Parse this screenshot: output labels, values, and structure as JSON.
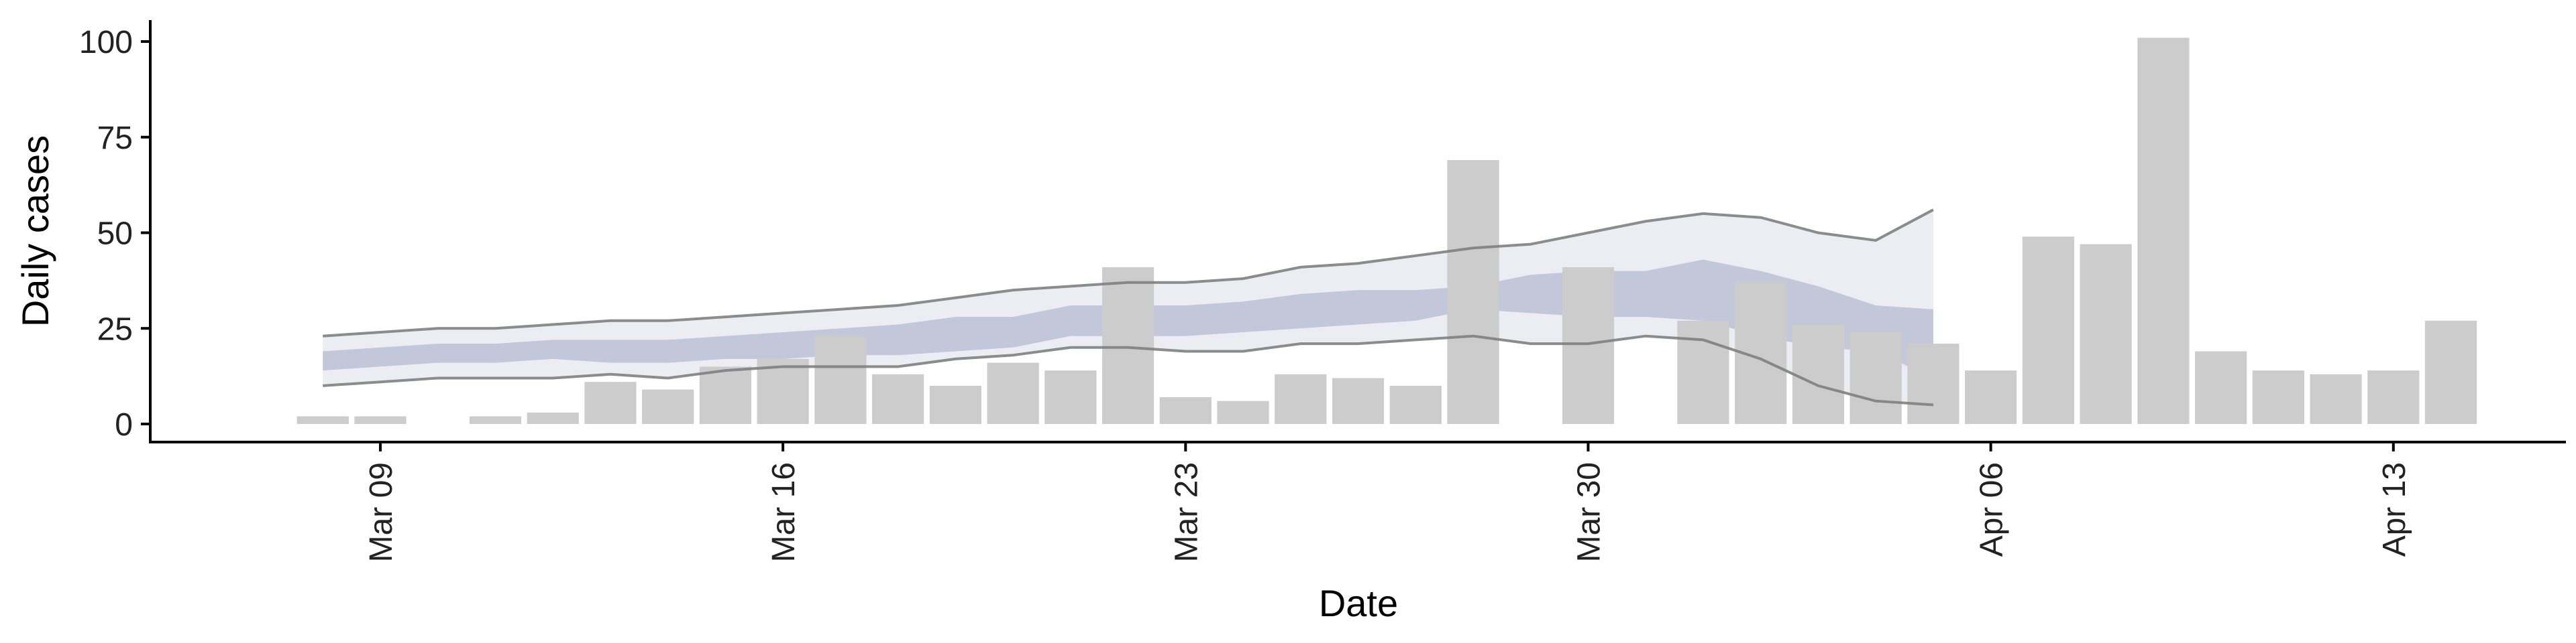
{
  "chart_data": {
    "type": "bar",
    "xlabel": "Date",
    "ylabel": "Daily cases",
    "ylim": [
      0,
      105
    ],
    "xlim": [
      "2020-03-05",
      "2020-04-16"
    ],
    "grid": false,
    "colors": {
      "bars": "#cccccc",
      "band_outer": "#dcdee9",
      "band_inner": "#a6afca",
      "bound_lines": "#808080"
    },
    "x_ticks": [
      {
        "date": "2020-03-09",
        "label": "Mar 09"
      },
      {
        "date": "2020-03-16",
        "label": "Mar 16"
      },
      {
        "date": "2020-03-23",
        "label": "Mar 23"
      },
      {
        "date": "2020-03-30",
        "label": "Mar 30"
      },
      {
        "date": "2020-04-06",
        "label": "Apr 06"
      },
      {
        "date": "2020-04-13",
        "label": "Apr 13"
      }
    ],
    "y_ticks": [
      0,
      25,
      50,
      75,
      100
    ],
    "bars": [
      {
        "date": "2020-03-08",
        "value": 2
      },
      {
        "date": "2020-03-09",
        "value": 2
      },
      {
        "date": "2020-03-10",
        "value": 0
      },
      {
        "date": "2020-03-11",
        "value": 2
      },
      {
        "date": "2020-03-12",
        "value": 3
      },
      {
        "date": "2020-03-13",
        "value": 11
      },
      {
        "date": "2020-03-14",
        "value": 9
      },
      {
        "date": "2020-03-15",
        "value": 15
      },
      {
        "date": "2020-03-16",
        "value": 17
      },
      {
        "date": "2020-03-17",
        "value": 23
      },
      {
        "date": "2020-03-18",
        "value": 13
      },
      {
        "date": "2020-03-19",
        "value": 10
      },
      {
        "date": "2020-03-20",
        "value": 16
      },
      {
        "date": "2020-03-21",
        "value": 14
      },
      {
        "date": "2020-03-22",
        "value": 41
      },
      {
        "date": "2020-03-23",
        "value": 7
      },
      {
        "date": "2020-03-24",
        "value": 6
      },
      {
        "date": "2020-03-25",
        "value": 13
      },
      {
        "date": "2020-03-26",
        "value": 12
      },
      {
        "date": "2020-03-27",
        "value": 10
      },
      {
        "date": "2020-03-28",
        "value": 69
      },
      {
        "date": "2020-03-29",
        "value": 0
      },
      {
        "date": "2020-03-30",
        "value": 41
      },
      {
        "date": "2020-03-31",
        "value": 0
      },
      {
        "date": "2020-04-01",
        "value": 27
      },
      {
        "date": "2020-04-02",
        "value": 37
      },
      {
        "date": "2020-04-03",
        "value": 26
      },
      {
        "date": "2020-04-04",
        "value": 24
      },
      {
        "date": "2020-04-05",
        "value": 21
      },
      {
        "date": "2020-04-06",
        "value": 14
      },
      {
        "date": "2020-04-07",
        "value": 49
      },
      {
        "date": "2020-04-08",
        "value": 47
      },
      {
        "date": "2020-04-09",
        "value": 101
      },
      {
        "date": "2020-04-10",
        "value": 19
      },
      {
        "date": "2020-04-11",
        "value": 14
      },
      {
        "date": "2020-04-12",
        "value": 13
      },
      {
        "date": "2020-04-13",
        "value": 14
      },
      {
        "date": "2020-04-14",
        "value": 27
      }
    ],
    "estimate": {
      "dates": [
        "2020-03-08",
        "2020-03-09",
        "2020-03-10",
        "2020-03-11",
        "2020-03-12",
        "2020-03-13",
        "2020-03-14",
        "2020-03-15",
        "2020-03-16",
        "2020-03-17",
        "2020-03-18",
        "2020-03-19",
        "2020-03-20",
        "2020-03-21",
        "2020-03-22",
        "2020-03-23",
        "2020-03-24",
        "2020-03-25",
        "2020-03-26",
        "2020-03-27",
        "2020-03-28",
        "2020-03-29",
        "2020-03-30",
        "2020-03-31",
        "2020-04-01",
        "2020-04-02",
        "2020-04-03",
        "2020-04-04",
        "2020-04-05"
      ],
      "upper_90": [
        23,
        24,
        25,
        25,
        26,
        27,
        27,
        28,
        29,
        30,
        31,
        33,
        35,
        36,
        37,
        37,
        38,
        41,
        42,
        44,
        46,
        47,
        50,
        53,
        55,
        54,
        50,
        48,
        56
      ],
      "upper_50": [
        19,
        20,
        21,
        21,
        22,
        22,
        22,
        23,
        24,
        25,
        26,
        28,
        28,
        31,
        31,
        31,
        32,
        34,
        35,
        35,
        36,
        39,
        40,
        40,
        43,
        40,
        36,
        31,
        30
      ],
      "lower_50": [
        14,
        15,
        16,
        16,
        17,
        16,
        16,
        17,
        17,
        18,
        18,
        19,
        20,
        23,
        23,
        23,
        24,
        25,
        26,
        27,
        30,
        29,
        28,
        28,
        27,
        23,
        20,
        19,
        12
      ],
      "lower_90": [
        10,
        11,
        12,
        12,
        12,
        13,
        12,
        14,
        15,
        15,
        15,
        17,
        18,
        20,
        20,
        19,
        19,
        21,
        21,
        22,
        23,
        21,
        21,
        23,
        22,
        17,
        10,
        6,
        5
      ]
    }
  }
}
